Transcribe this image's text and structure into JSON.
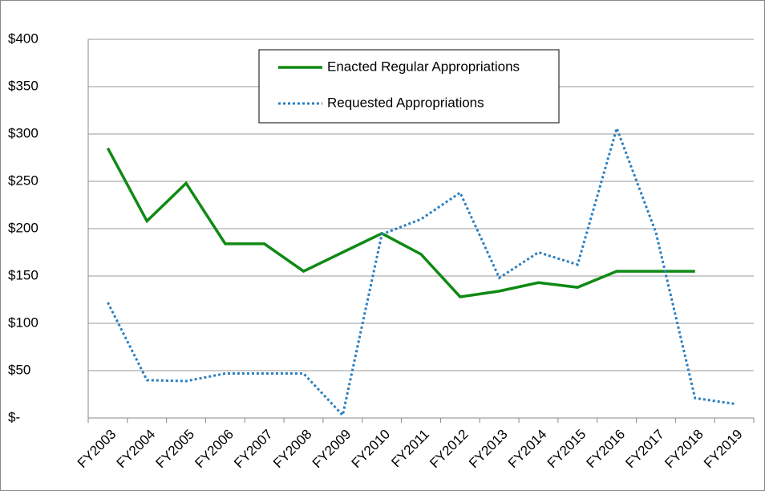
{
  "chart_data": {
    "type": "line",
    "categories": [
      "FY2003",
      "FY2004",
      "FY2005",
      "FY2006",
      "FY2007",
      "FY2008",
      "FY2009",
      "FY2010",
      "FY2011",
      "FY2012",
      "FY2013",
      "FY2014",
      "FY2015",
      "FY2016",
      "FY2017",
      "FY2018",
      "FY2019"
    ],
    "series": [
      {
        "name": "Enacted Regular Appropriations",
        "color": "#0f8a14",
        "style": "solid",
        "values": [
          285,
          208,
          248,
          184,
          184,
          155,
          175,
          195,
          173,
          128,
          134,
          143,
          138,
          155,
          155,
          155,
          null
        ]
      },
      {
        "name": "Requested Appropriations",
        "color": "#2a7fc0",
        "style": "dotted",
        "values": [
          122,
          40,
          39,
          47,
          47,
          47,
          3,
          194,
          210,
          238,
          148,
          175,
          162,
          306,
          196,
          21,
          15
        ]
      }
    ],
    "ylim": [
      0,
      400
    ],
    "yticks": [
      {
        "value": 0,
        "label": "$-"
      },
      {
        "value": 50,
        "label": "$50"
      },
      {
        "value": 100,
        "label": "$100"
      },
      {
        "value": 150,
        "label": "$150"
      },
      {
        "value": 200,
        "label": "$200"
      },
      {
        "value": 250,
        "label": "$250"
      },
      {
        "value": 300,
        "label": "$300"
      },
      {
        "value": 350,
        "label": "$350"
      },
      {
        "value": 400,
        "label": "$400"
      }
    ],
    "grid": true,
    "legend": "top"
  }
}
